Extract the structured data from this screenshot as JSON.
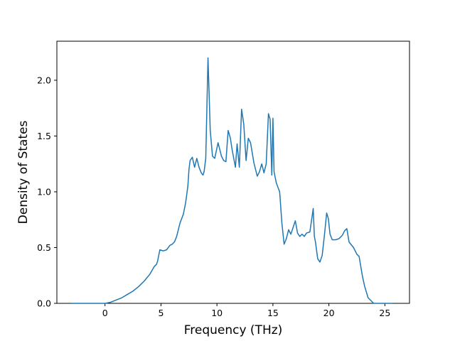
{
  "chart_data": {
    "type": "line",
    "title": "",
    "xlabel": "Frequency (THz)",
    "ylabel": "Density of States",
    "xlim": [
      -4.3,
      27.2
    ],
    "ylim": [
      0.0,
      2.35
    ],
    "xticks": [
      0,
      5,
      10,
      15,
      20,
      25
    ],
    "yticks": [
      0.0,
      0.5,
      1.0,
      1.5,
      2.0
    ],
    "xtick_labels": [
      "0",
      "5",
      "10",
      "15",
      "20",
      "25"
    ],
    "ytick_labels": [
      "0.0",
      "0.5",
      "1.0",
      "1.5",
      "2.0"
    ],
    "grid": false,
    "line_color": "#1f77b4",
    "series": [
      {
        "x": [
          -3.0,
          0.0,
          0.5,
          1.0,
          1.5,
          2.0,
          2.5,
          3.0,
          3.5,
          4.0,
          4.4,
          4.6,
          4.7,
          4.9,
          5.2,
          5.5,
          5.8,
          6.0,
          6.2,
          6.4,
          6.7,
          7.0,
          7.2,
          7.4,
          7.5,
          7.6,
          7.8,
          8.0,
          8.2,
          8.4,
          8.6,
          8.75,
          8.85,
          9.0,
          9.2,
          9.4,
          9.6,
          9.8,
          10.1,
          10.4,
          10.6,
          10.8,
          11.0,
          11.2,
          11.35,
          11.5,
          11.65,
          11.8,
          12.0,
          12.2,
          12.4,
          12.6,
          12.8,
          13.0,
          13.3,
          13.6,
          13.8,
          14.0,
          14.2,
          14.4,
          14.6,
          14.75,
          14.9,
          15.0,
          15.1,
          15.3,
          15.6,
          15.8,
          16.0,
          16.2,
          16.4,
          16.6,
          16.8,
          17.0,
          17.2,
          17.4,
          17.6,
          17.8,
          18.0,
          18.3,
          18.6,
          18.7,
          18.8,
          19.0,
          19.2,
          19.4,
          19.6,
          19.8,
          19.95,
          20.1,
          20.3,
          20.6,
          20.9,
          21.2,
          21.4,
          21.6,
          21.8,
          22.2,
          22.5,
          22.7,
          23.0,
          23.2,
          23.5,
          24.0,
          25.0,
          25.7
        ],
        "y": [
          0.0,
          0.0,
          0.01,
          0.03,
          0.05,
          0.08,
          0.11,
          0.15,
          0.2,
          0.26,
          0.33,
          0.35,
          0.38,
          0.48,
          0.47,
          0.48,
          0.52,
          0.53,
          0.55,
          0.6,
          0.72,
          0.8,
          0.9,
          1.05,
          1.2,
          1.28,
          1.31,
          1.22,
          1.3,
          1.22,
          1.17,
          1.15,
          1.18,
          1.3,
          2.2,
          1.55,
          1.32,
          1.3,
          1.44,
          1.32,
          1.28,
          1.27,
          1.55,
          1.48,
          1.38,
          1.3,
          1.22,
          1.43,
          1.22,
          1.74,
          1.6,
          1.28,
          1.48,
          1.44,
          1.26,
          1.14,
          1.18,
          1.25,
          1.17,
          1.25,
          1.7,
          1.65,
          1.15,
          1.66,
          1.18,
          1.08,
          1.0,
          0.72,
          0.53,
          0.58,
          0.66,
          0.62,
          0.68,
          0.74,
          0.63,
          0.6,
          0.62,
          0.6,
          0.63,
          0.64,
          0.85,
          0.6,
          0.55,
          0.4,
          0.37,
          0.43,
          0.61,
          0.81,
          0.76,
          0.62,
          0.57,
          0.57,
          0.58,
          0.61,
          0.65,
          0.67,
          0.55,
          0.5,
          0.44,
          0.42,
          0.24,
          0.15,
          0.05,
          0.0,
          0.0,
          0.0
        ]
      }
    ]
  }
}
